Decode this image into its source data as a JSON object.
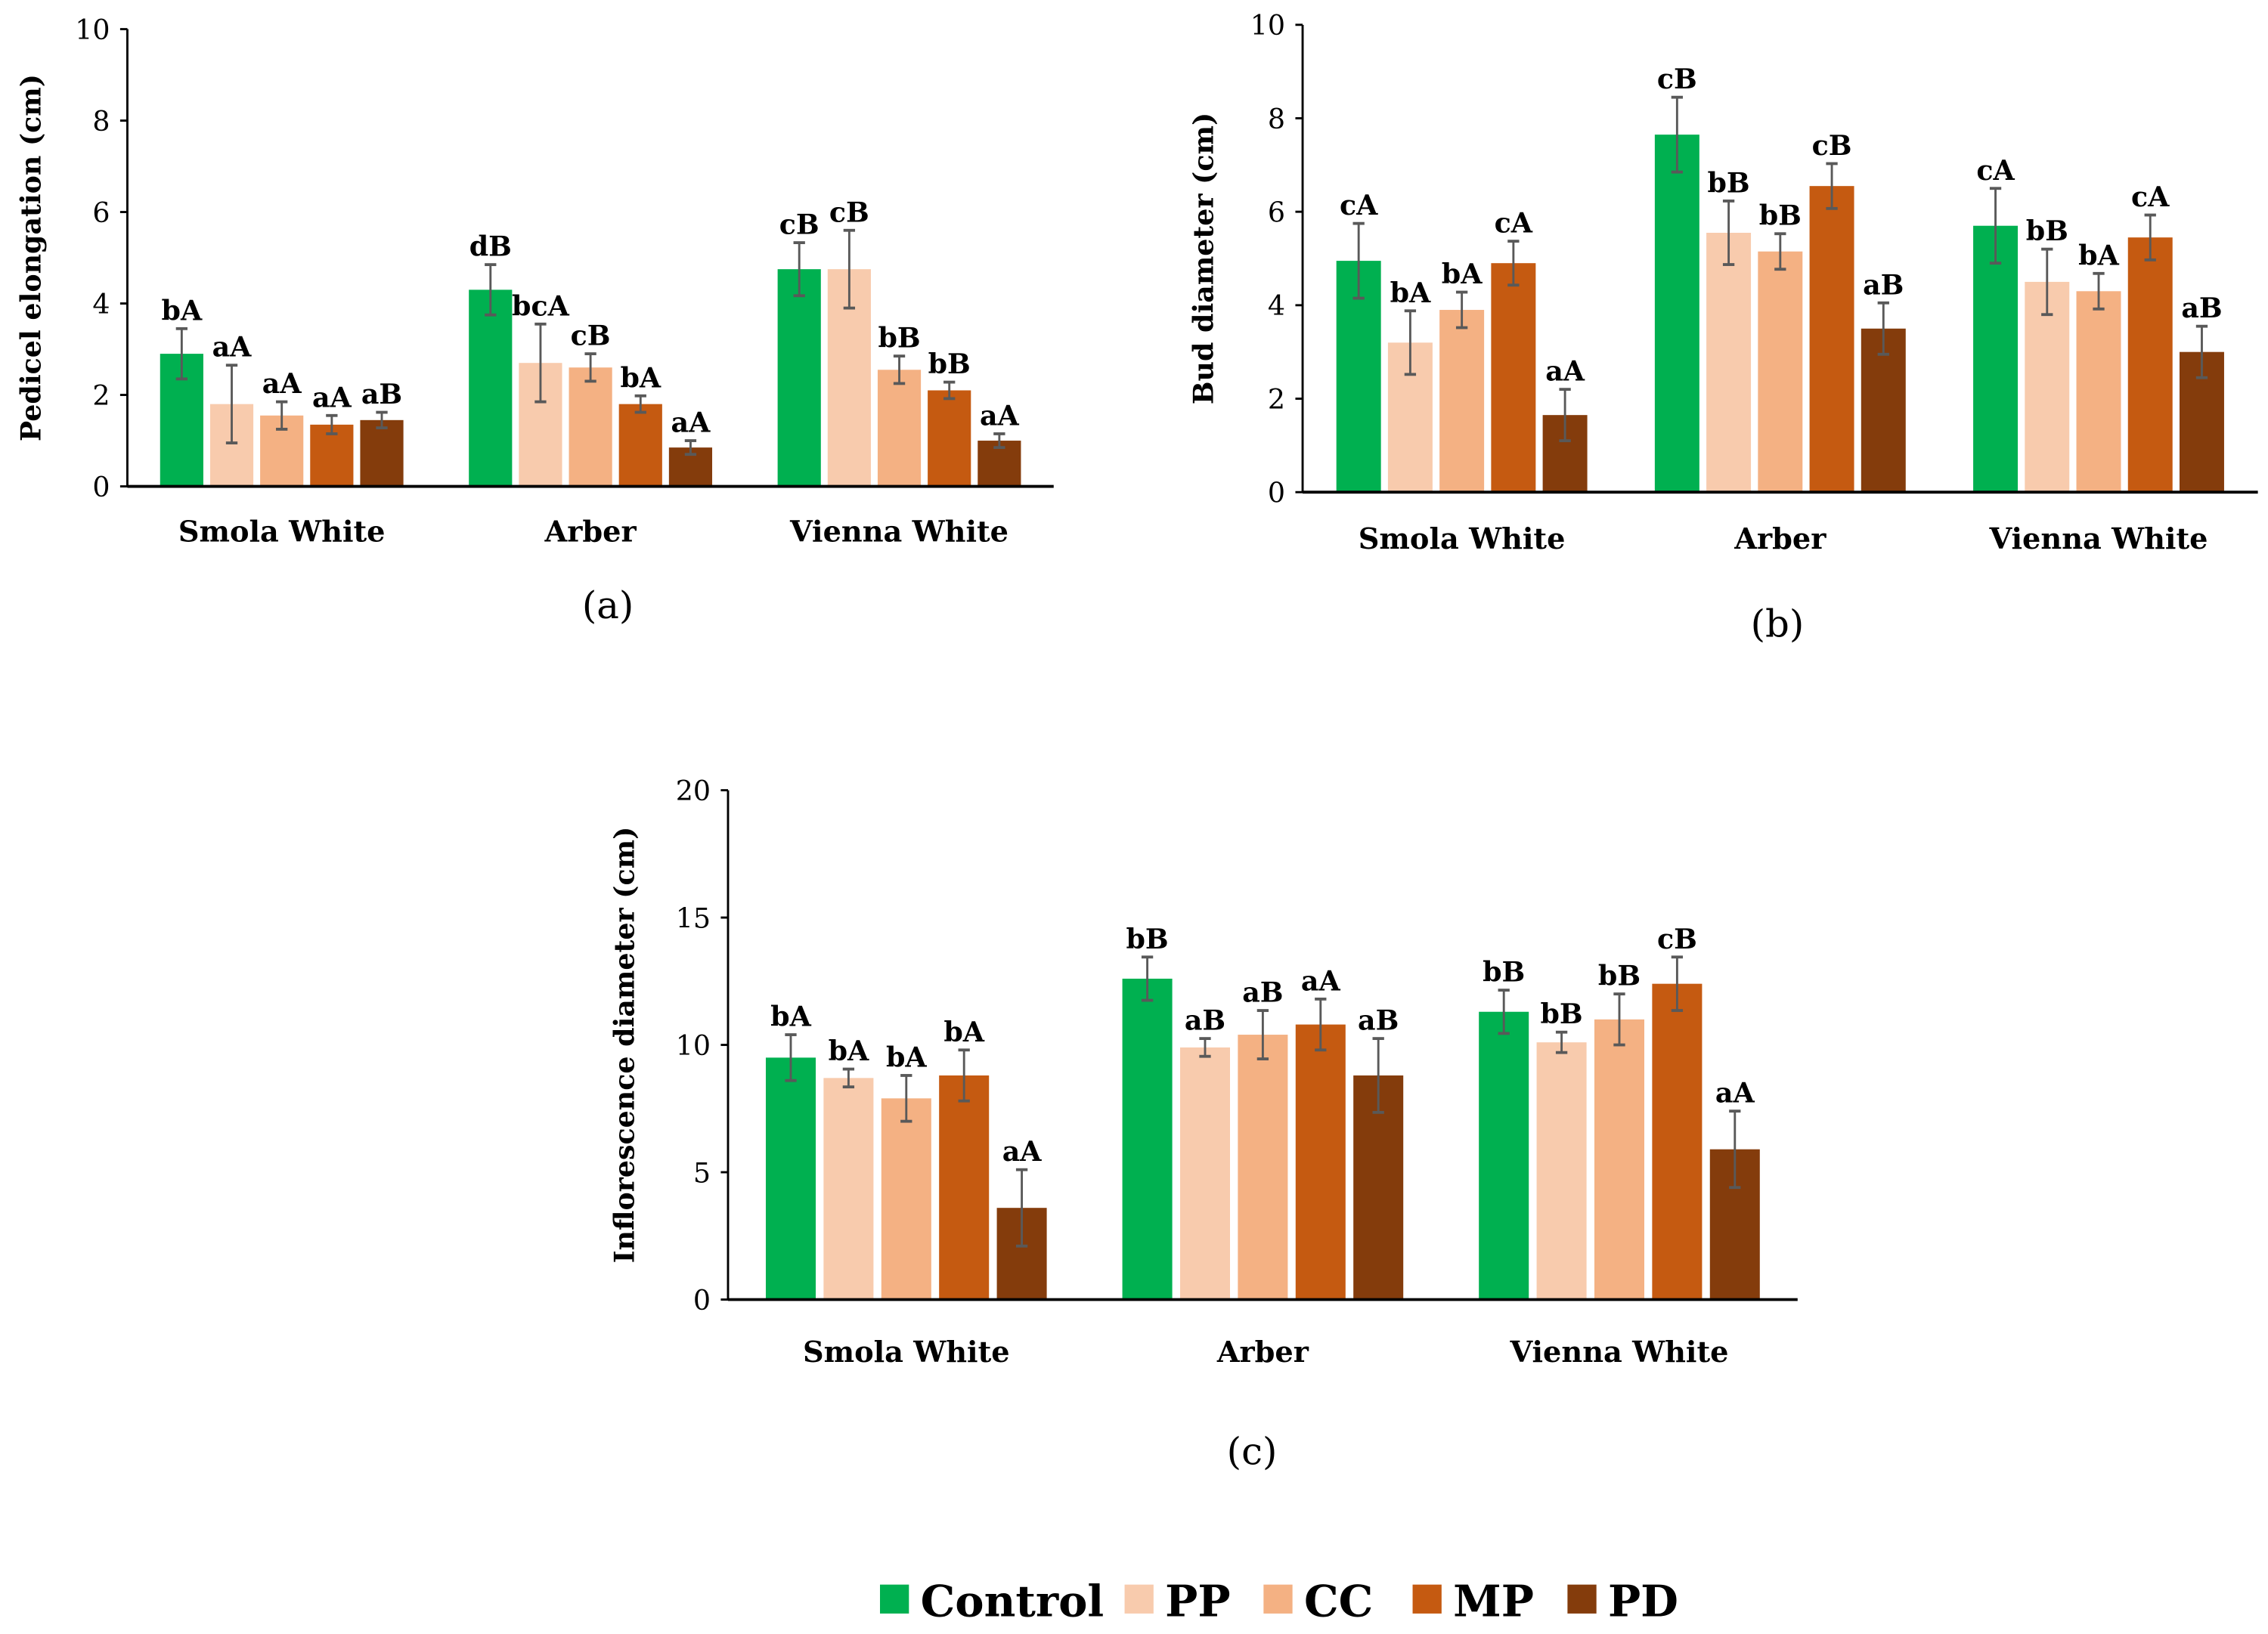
{
  "series_colors": {
    "Control": "#00b050",
    "PP": "#f8cbad",
    "CC": "#f4b183",
    "MP": "#c55a11",
    "PD": "#843c0c"
  },
  "legend": [
    "Control",
    "PP",
    "CC",
    "MP",
    "PD"
  ],
  "chart_data": [
    {
      "panel": "(a)",
      "type": "bar",
      "ylabel": "Pedicel elongation (cm)",
      "ylim": [
        0,
        10
      ],
      "yticks": [
        0,
        2,
        4,
        6,
        8,
        10
      ],
      "categories": [
        "Smola White",
        "Arber",
        "Vienna White"
      ],
      "series": [
        {
          "name": "Control",
          "values": [
            2.9,
            4.3,
            4.75
          ],
          "errors": [
            0.55,
            0.55,
            0.58
          ],
          "labels": [
            "bA",
            "dB",
            "cB"
          ]
        },
        {
          "name": "PP",
          "values": [
            1.8,
            2.7,
            4.75
          ],
          "errors": [
            0.85,
            0.85,
            0.85
          ],
          "labels": [
            "aA",
            "bcA",
            "cB"
          ]
        },
        {
          "name": "CC",
          "values": [
            1.55,
            2.6,
            2.55
          ],
          "errors": [
            0.3,
            0.3,
            0.3
          ],
          "labels": [
            "aA",
            "cB",
            "bB"
          ]
        },
        {
          "name": "MP",
          "values": [
            1.35,
            1.8,
            2.1
          ],
          "errors": [
            0.2,
            0.18,
            0.18
          ],
          "labels": [
            "aA",
            "bA",
            "bB"
          ]
        },
        {
          "name": "PD",
          "values": [
            1.45,
            0.85,
            1.0
          ],
          "errors": [
            0.17,
            0.15,
            0.15
          ],
          "labels": [
            "aB",
            "aA",
            "aA"
          ]
        }
      ]
    },
    {
      "panel": "(b)",
      "type": "bar",
      "ylabel": "Bud diameter (cm)",
      "ylim": [
        0,
        10
      ],
      "yticks": [
        0,
        2,
        4,
        6,
        8,
        10
      ],
      "categories": [
        "Smola White",
        "Arber",
        "Vienna White"
      ],
      "series": [
        {
          "name": "Control",
          "values": [
            4.95,
            7.65,
            5.7
          ],
          "errors": [
            0.8,
            0.8,
            0.8
          ],
          "labels": [
            "cA",
            "cB",
            "cA"
          ]
        },
        {
          "name": "PP",
          "values": [
            3.2,
            5.55,
            4.5
          ],
          "errors": [
            0.68,
            0.68,
            0.7
          ],
          "labels": [
            "bA",
            "bB",
            "bB"
          ]
        },
        {
          "name": "CC",
          "values": [
            3.9,
            5.15,
            4.3
          ],
          "errors": [
            0.38,
            0.38,
            0.38
          ],
          "labels": [
            "bA",
            "bB",
            "bA"
          ]
        },
        {
          "name": "MP",
          "values": [
            4.9,
            6.55,
            5.45
          ],
          "errors": [
            0.47,
            0.48,
            0.48
          ],
          "labels": [
            "cA",
            "cB",
            "cA"
          ]
        },
        {
          "name": "PD",
          "values": [
            1.65,
            3.5,
            3.0
          ],
          "errors": [
            0.55,
            0.55,
            0.55
          ],
          "labels": [
            "aA",
            "aB",
            "aB"
          ]
        }
      ]
    },
    {
      "panel": "(c)",
      "type": "bar",
      "ylabel": "Inflorescence diameter (cm)",
      "ylim": [
        0,
        20
      ],
      "yticks": [
        0,
        5,
        10,
        15,
        20
      ],
      "categories": [
        "Smola White",
        "Arber",
        "Vienna White"
      ],
      "series": [
        {
          "name": "Control",
          "values": [
            9.5,
            12.6,
            11.3
          ],
          "errors": [
            0.9,
            0.85,
            0.85
          ],
          "labels": [
            "bA",
            "bB",
            "bB"
          ]
        },
        {
          "name": "PP",
          "values": [
            8.7,
            9.9,
            10.1
          ],
          "errors": [
            0.35,
            0.35,
            0.4
          ],
          "labels": [
            "bA",
            "aB",
            "bB"
          ]
        },
        {
          "name": "CC",
          "values": [
            7.9,
            10.4,
            11.0
          ],
          "errors": [
            0.9,
            0.95,
            1.0
          ],
          "labels": [
            "bA",
            "aB",
            "bB"
          ]
        },
        {
          "name": "MP",
          "values": [
            8.8,
            10.8,
            12.4
          ],
          "errors": [
            1.0,
            1.0,
            1.05
          ],
          "labels": [
            "bA",
            "aA",
            "cB"
          ]
        },
        {
          "name": "PD",
          "values": [
            3.6,
            8.8,
            5.9
          ],
          "errors": [
            1.5,
            1.45,
            1.5
          ],
          "labels": [
            "aA",
            "aB",
            "aA"
          ]
        }
      ]
    }
  ]
}
